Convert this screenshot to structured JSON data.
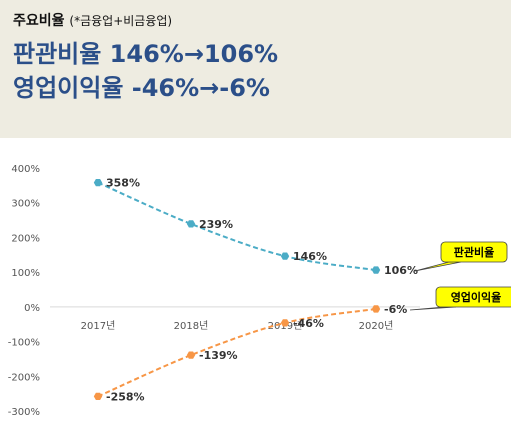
{
  "header": {
    "subtitle": "주요비율",
    "note": "(*금융업+비금융업)",
    "line1": "판관비율  146%→106%",
    "line2": "영업이익율  -46%→-6%"
  },
  "colors": {
    "series1": "#4bacc6",
    "series2": "#f79646",
    "callout": "#ffff00"
  },
  "chart_data": {
    "type": "line",
    "categories": [
      "2017년",
      "2018년",
      "2019년",
      "2020년"
    ],
    "ylim": [
      -300,
      400
    ],
    "yticks": [
      "400%",
      "300%",
      "200%",
      "100%",
      "0%",
      "-100%",
      "-200%",
      "-300%"
    ],
    "series": [
      {
        "name": "판관비율",
        "values": [
          358,
          239,
          146,
          106
        ],
        "labels": [
          "358%",
          "239%",
          "146%",
          "106%"
        ]
      },
      {
        "name": "영업이익율",
        "values": [
          -258,
          -139,
          -46,
          -6
        ],
        "labels": [
          "-258%",
          "-139%",
          "-46%",
          "-6%"
        ]
      }
    ]
  }
}
